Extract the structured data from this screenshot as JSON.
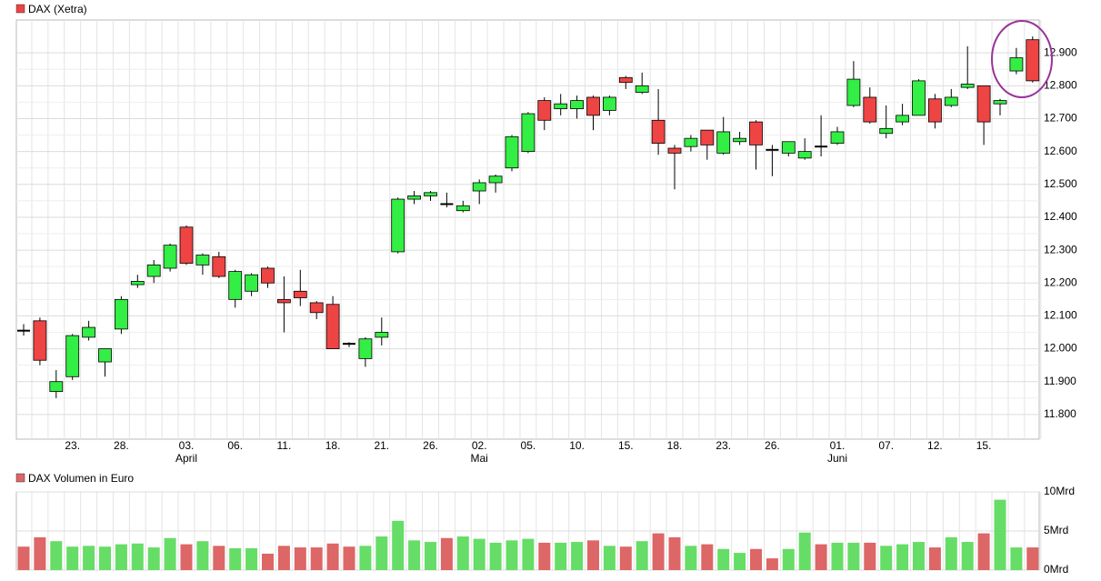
{
  "chart_data": [
    {
      "type": "candlestick",
      "title": "DAX (Xetra)",
      "categories": [
        null,
        null,
        null,
        "23.",
        null,
        null,
        "28.",
        null,
        null,
        null,
        "03.",
        null,
        null,
        "06.",
        null,
        null,
        "11.",
        null,
        null,
        "18.",
        null,
        null,
        "21.",
        null,
        null,
        "26.",
        null,
        null,
        "02.",
        null,
        null,
        "05.",
        null,
        null,
        "10.",
        null,
        null,
        "15.",
        null,
        null,
        "18.",
        null,
        null,
        "23.",
        null,
        null,
        "26.",
        null,
        null,
        null,
        "01.",
        null,
        null,
        "07.",
        null,
        null,
        "12.",
        null,
        null,
        "15.",
        null,
        null,
        null
      ],
      "month_labels": [
        null,
        null,
        null,
        null,
        null,
        null,
        null,
        null,
        null,
        null,
        "April",
        null,
        null,
        null,
        null,
        null,
        null,
        null,
        null,
        null,
        null,
        null,
        null,
        null,
        null,
        null,
        null,
        null,
        "Mai",
        null,
        null,
        null,
        null,
        null,
        null,
        null,
        null,
        null,
        null,
        null,
        null,
        null,
        null,
        null,
        null,
        null,
        null,
        null,
        null,
        null,
        "Juni",
        null,
        null,
        null,
        null,
        null,
        null,
        null,
        null,
        null,
        null,
        null,
        null
      ],
      "open": [
        12055,
        12085,
        11870,
        11915,
        12035,
        11960,
        12060,
        12195,
        12220,
        12245,
        12370,
        12255,
        12280,
        12150,
        12175,
        12245,
        12150,
        12175,
        12140,
        12135,
        12015,
        11970,
        12035,
        12295,
        12455,
        12465,
        12440,
        12420,
        12480,
        12505,
        12550,
        12600,
        12755,
        12730,
        12730,
        12765,
        12725,
        12825,
        12780,
        12695,
        12610,
        12615,
        12665,
        12595,
        12630,
        12690,
        12605,
        12595,
        12580,
        12615,
        12625,
        12740,
        12765,
        12655,
        12690,
        12710,
        12760,
        12740,
        12795,
        12800,
        12745,
        12845,
        12940
      ],
      "high": [
        12075,
        12095,
        11935,
        12045,
        12085,
        12000,
        12160,
        12225,
        12270,
        12320,
        12375,
        12290,
        12295,
        12240,
        12230,
        12250,
        12220,
        12240,
        12145,
        12160,
        12020,
        12035,
        12095,
        12460,
        12480,
        12480,
        12475,
        12450,
        12515,
        12530,
        12650,
        12720,
        12765,
        12775,
        12770,
        12770,
        12770,
        12830,
        12840,
        12790,
        12620,
        12650,
        12665,
        12705,
        12660,
        12695,
        12620,
        12630,
        12640,
        12710,
        12675,
        12875,
        12795,
        12740,
        12745,
        12820,
        12775,
        12790,
        12920,
        12800,
        12760,
        12915,
        12950
      ],
      "low": [
        12040,
        11950,
        11850,
        11905,
        12025,
        11915,
        12045,
        12185,
        12200,
        12235,
        12255,
        12225,
        12215,
        12125,
        12160,
        12185,
        12050,
        12130,
        12090,
        12000,
        12005,
        11945,
        12010,
        12290,
        12440,
        12450,
        12430,
        12415,
        12440,
        12475,
        12540,
        12595,
        12665,
        12710,
        12700,
        12665,
        12710,
        12790,
        12775,
        12590,
        12485,
        12600,
        12575,
        12590,
        12620,
        12545,
        12525,
        12585,
        12575,
        12585,
        12620,
        12735,
        12685,
        12640,
        12680,
        12710,
        12670,
        12735,
        12790,
        12620,
        12710,
        12835,
        12810
      ],
      "close": [
        12055,
        11965,
        11900,
        12040,
        12065,
        12000,
        12150,
        12205,
        12255,
        12315,
        12260,
        12285,
        12220,
        12235,
        12225,
        12200,
        12140,
        12155,
        12110,
        12000,
        12015,
        12030,
        12050,
        12455,
        12465,
        12475,
        12440,
        12435,
        12505,
        12525,
        12645,
        12715,
        12695,
        12745,
        12755,
        12710,
        12765,
        12810,
        12800,
        12625,
        12595,
        12640,
        12620,
        12660,
        12640,
        12620,
        12605,
        12630,
        12600,
        12615,
        12660,
        12820,
        12690,
        12670,
        12710,
        12815,
        12690,
        12765,
        12805,
        12690,
        12755,
        12885,
        12815
      ],
      "up_color": "#33ee44",
      "down_color": "#ee4444",
      "flat_color": "#000000",
      "ylim": [
        11725,
        13000
      ],
      "yticks": [
        {
          "value": 11800,
          "label": "11.800"
        },
        {
          "value": 11900,
          "label": "11.900"
        },
        {
          "value": 12000,
          "label": "12.000"
        },
        {
          "value": 12100,
          "label": "12.100"
        },
        {
          "value": 12200,
          "label": "12.200"
        },
        {
          "value": 12300,
          "label": "12.300"
        },
        {
          "value": 12400,
          "label": "12.400"
        },
        {
          "value": 12500,
          "label": "12.500"
        },
        {
          "value": 12600,
          "label": "12.600"
        },
        {
          "value": 12700,
          "label": "12.700"
        },
        {
          "value": 12800,
          "label": "12.800"
        },
        {
          "value": 12900,
          "label": "12.900"
        }
      ],
      "grid": true
    },
    {
      "type": "bar",
      "title": "DAX Volumen in Euro",
      "values": [
        3.0,
        4.2,
        3.7,
        3.0,
        3.1,
        3.0,
        3.3,
        3.4,
        2.9,
        4.1,
        3.3,
        3.7,
        3.1,
        2.8,
        2.8,
        2.1,
        3.1,
        2.9,
        2.9,
        3.4,
        3.0,
        3.1,
        4.3,
        6.3,
        3.8,
        3.6,
        4.1,
        4.3,
        4.0,
        3.5,
        3.8,
        4.0,
        3.5,
        3.5,
        3.6,
        3.8,
        3.1,
        3.0,
        3.7,
        4.7,
        4.2,
        3.1,
        3.3,
        2.7,
        2.2,
        2.7,
        1.5,
        2.7,
        4.8,
        3.3,
        3.5,
        3.5,
        3.5,
        3.1,
        3.3,
        3.6,
        2.9,
        4.2,
        3.6,
        4.7,
        9.0,
        2.9,
        2.9
      ],
      "up_color": "#66dd66",
      "down_color": "#dd6666",
      "ylim": [
        0,
        10
      ],
      "yticks": [
        {
          "value": 0,
          "label": "0Mrd"
        },
        {
          "value": 5,
          "label": "5Mrd"
        },
        {
          "value": 10,
          "label": "10Mrd"
        }
      ],
      "grid": true
    }
  ]
}
